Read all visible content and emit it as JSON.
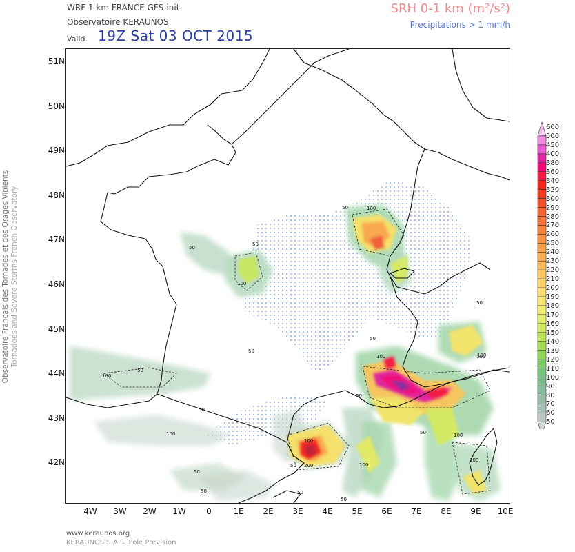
{
  "header": {
    "model": "WRF 1 km FRANCE  GFS-init",
    "observatory": "Observatoire KERAUNOS",
    "valid_label": "Valid.",
    "valid_time": "19Z Sat 03 OCT 2015",
    "field_title": "SRH 0-1 km (m²/s²)",
    "precip_note": "Precipitations > 1 mm/h"
  },
  "axes": {
    "latitude_labels": [
      "51N",
      "50N",
      "49N",
      "48N",
      "47N",
      "46N",
      "45N",
      "44N",
      "43N",
      "42N"
    ],
    "longitude_labels": [
      "4W",
      "3W",
      "2W",
      "1W",
      "0",
      "1E",
      "2E",
      "3E",
      "4E",
      "5E",
      "6E",
      "7E",
      "8E",
      "9E",
      "10E"
    ]
  },
  "contour_labels": [
    "50",
    "100",
    "50",
    "50",
    "100",
    "50",
    "100",
    "50",
    "100",
    "50",
    "100",
    "50",
    "100",
    "50",
    "200",
    "100",
    "50",
    "100",
    "50",
    "100",
    "50",
    "50",
    "50",
    "100",
    "100",
    "50",
    "50"
  ],
  "colorbar": {
    "values": [
      "600",
      "500",
      "450",
      "400",
      "380",
      "360",
      "340",
      "320",
      "300",
      "290",
      "280",
      "270",
      "260",
      "250",
      "240",
      "230",
      "220",
      "210",
      "200",
      "190",
      "180",
      "170",
      "160",
      "150",
      "140",
      "130",
      "120",
      "110",
      "100",
      "90",
      "80",
      "70",
      "60",
      "50"
    ],
    "colors": [
      "#f7c6f0",
      "#f28ee3",
      "#e95fd2",
      "#e0259f",
      "#f20b78",
      "#f21c45",
      "#f0261c",
      "#f23a1e",
      "#f3502a",
      "#f56434",
      "#f6733a",
      "#f7843f",
      "#f89446",
      "#f9a24d",
      "#fab053",
      "#fbbd5b",
      "#fcc862",
      "#fcd36a",
      "#fcdc6f",
      "#fbe673",
      "#f2ee73",
      "#e4ee6c",
      "#d1ea62",
      "#bde45a",
      "#a5dd55",
      "#8fd659",
      "#7ece68",
      "#79c77c",
      "#7cc08d",
      "#88bd9d",
      "#98bea9",
      "#a9c2b5",
      "#bdc8c1",
      "#d1d5d1"
    ]
  },
  "side_text": {
    "line1": "Observatoire Francais des Tornades et des Orages Violents",
    "line2": "Tornadoes and Severe Storms French Observatory"
  },
  "footer": {
    "url": "www.keraunos.org",
    "company": "KERAUNOS S.A.S. Pole Prevision"
  }
}
